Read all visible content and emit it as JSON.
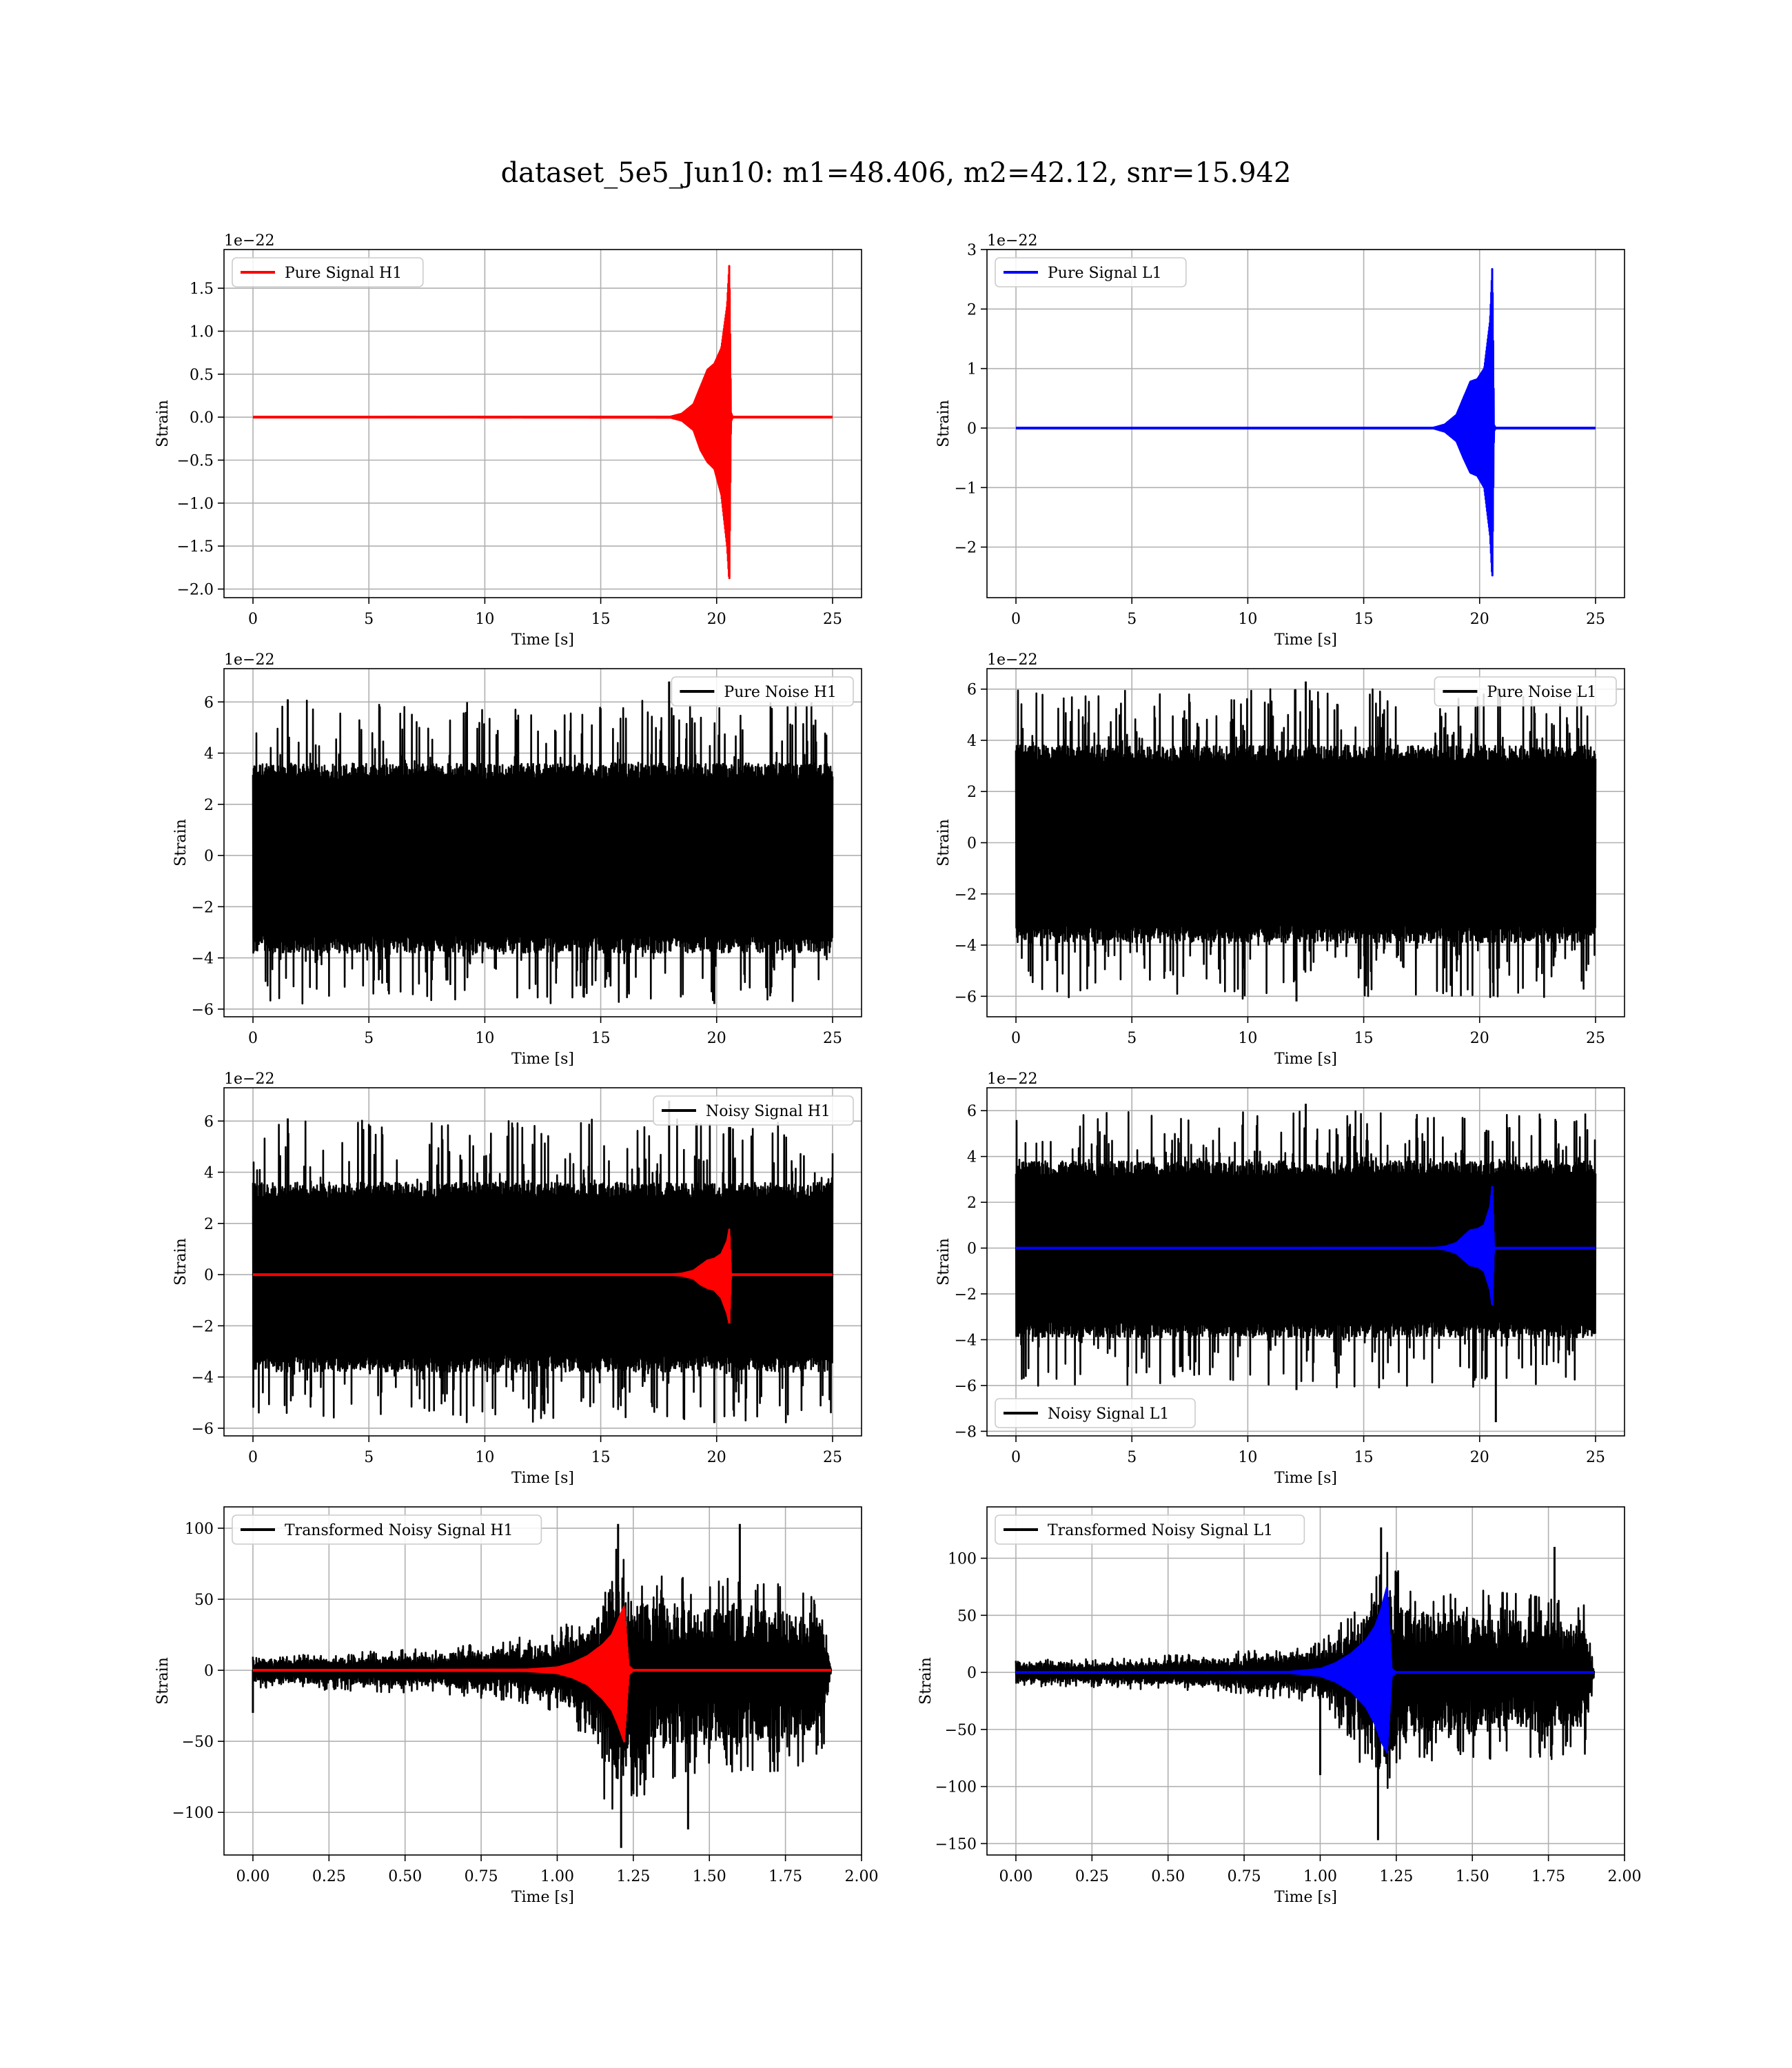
{
  "title": "dataset_5e5_Jun10: m1=48.406, m2=42.12, snr=15.942",
  "colors": {
    "H1": "#ff0000",
    "L1": "#0000ff",
    "noise": "#000000",
    "grid": "#b0b0b0"
  },
  "chart_data": [
    {
      "type": "line",
      "id": "pure-signal-h1",
      "offset_label": "1e−22",
      "xlabel": "Time [s]",
      "ylabel": "Strain",
      "xlim": [
        -1.25,
        26.25
      ],
      "ylim": [
        -2.1,
        1.95
      ],
      "xticks": [
        0,
        5,
        10,
        15,
        20,
        25
      ],
      "xtick_labels": [
        "0",
        "5",
        "10",
        "15",
        "20",
        "25"
      ],
      "yticks": [
        -2.0,
        -1.5,
        -1.0,
        -0.5,
        0.0,
        0.5,
        1.0,
        1.5
      ],
      "ytick_labels": [
        "−2.0",
        "−1.5",
        "−1.0",
        "−0.5",
        "0.0",
        "0.5",
        "1.0",
        "1.5"
      ],
      "legend": {
        "position": "upper-left",
        "entries": [
          {
            "name": "Pure Signal H1",
            "color": "#ff0000"
          }
        ]
      },
      "series": [
        {
          "name": "Pure Signal H1",
          "kind": "chirp",
          "color": "#ff0000",
          "x": [
            0,
            18.0,
            18.5,
            19.0,
            19.3,
            19.6,
            19.9,
            20.2,
            20.45,
            20.55,
            20.62,
            20.7,
            25
          ],
          "upper": [
            0,
            0.005,
            0.04,
            0.15,
            0.35,
            0.55,
            0.62,
            0.8,
            1.3,
            1.8,
            0.05,
            0,
            0
          ],
          "lower": [
            0,
            -0.005,
            -0.04,
            -0.15,
            -0.38,
            -0.52,
            -0.6,
            -0.9,
            -1.5,
            -1.93,
            -0.05,
            0,
            0
          ]
        }
      ]
    },
    {
      "type": "line",
      "id": "pure-signal-l1",
      "offset_label": "1e−22",
      "xlabel": "Time [s]",
      "ylabel": "Strain",
      "xlim": [
        -1.25,
        26.25
      ],
      "ylim": [
        -2.85,
        3.0
      ],
      "xticks": [
        0,
        5,
        10,
        15,
        20,
        25
      ],
      "xtick_labels": [
        "0",
        "5",
        "10",
        "15",
        "20",
        "25"
      ],
      "yticks": [
        -2,
        -1,
        0,
        1,
        2,
        3
      ],
      "ytick_labels": [
        "−2",
        "−1",
        "0",
        "1",
        "2",
        "3"
      ],
      "legend": {
        "position": "upper-left",
        "entries": [
          {
            "name": "Pure Signal L1",
            "color": "#0000ff"
          }
        ]
      },
      "series": [
        {
          "name": "Pure Signal L1",
          "kind": "chirp",
          "color": "#0000ff",
          "x": [
            0,
            18.0,
            18.5,
            19.0,
            19.3,
            19.6,
            19.9,
            20.2,
            20.45,
            20.55,
            20.62,
            20.7,
            25
          ],
          "upper": [
            0,
            0.005,
            0.06,
            0.22,
            0.5,
            0.78,
            0.82,
            1.0,
            1.8,
            2.75,
            0.05,
            0,
            0
          ],
          "lower": [
            0,
            -0.005,
            -0.06,
            -0.22,
            -0.5,
            -0.75,
            -0.8,
            -1.0,
            -1.8,
            -2.55,
            -0.05,
            0,
            0
          ]
        }
      ]
    },
    {
      "type": "line",
      "id": "pure-noise-h1",
      "offset_label": "1e−22",
      "xlabel": "Time [s]",
      "ylabel": "Strain",
      "xlim": [
        -1.25,
        26.25
      ],
      "ylim": [
        -6.3,
        7.3
      ],
      "xticks": [
        0,
        5,
        10,
        15,
        20,
        25
      ],
      "xtick_labels": [
        "0",
        "5",
        "10",
        "15",
        "20",
        "25"
      ],
      "yticks": [
        -6,
        -4,
        -2,
        0,
        2,
        4,
        6
      ],
      "ytick_labels": [
        "−6",
        "−4",
        "−2",
        "0",
        "2",
        "4",
        "6"
      ],
      "legend": {
        "position": "upper-right",
        "entries": [
          {
            "name": "Pure Noise H1",
            "color": "#000000"
          }
        ]
      },
      "series": [
        {
          "name": "Pure Noise H1",
          "kind": "noise",
          "color": "#000000",
          "x": [
            0,
            25
          ],
          "core_upper": 3.6,
          "core_lower": -3.8,
          "spike_upper": 6.1,
          "spike_lower": -5.8,
          "peaks": [
            {
              "x": 1.5,
              "y": 6.1
            },
            {
              "x": 17.95,
              "y": 6.8
            },
            {
              "x": 19.9,
              "y": -5.8
            }
          ]
        }
      ]
    },
    {
      "type": "line",
      "id": "pure-noise-l1",
      "offset_label": "1e−22",
      "xlabel": "Time [s]",
      "ylabel": "Strain",
      "xlim": [
        -1.25,
        26.25
      ],
      "ylim": [
        -6.8,
        6.8
      ],
      "xticks": [
        0,
        5,
        10,
        15,
        20,
        25
      ],
      "xtick_labels": [
        "0",
        "5",
        "10",
        "15",
        "20",
        "25"
      ],
      "yticks": [
        -6,
        -4,
        -2,
        0,
        2,
        4,
        6
      ],
      "ytick_labels": [
        "−6",
        "−4",
        "−2",
        "0",
        "2",
        "4",
        "6"
      ],
      "legend": {
        "position": "upper-right",
        "entries": [
          {
            "name": "Pure Noise L1",
            "color": "#000000"
          }
        ]
      },
      "series": [
        {
          "name": "Pure Noise L1",
          "kind": "noise",
          "color": "#000000",
          "x": [
            0,
            25
          ],
          "core_upper": 3.8,
          "core_lower": -3.9,
          "spike_upper": 6.0,
          "spike_lower": -6.1,
          "peaks": [
            {
              "x": 12.5,
              "y": 6.3
            },
            {
              "x": 12.1,
              "y": -6.2
            },
            {
              "x": 20.6,
              "y": -6.0
            }
          ]
        }
      ]
    },
    {
      "type": "line",
      "id": "noisy-signal-h1",
      "offset_label": "1e−22",
      "xlabel": "Time [s]",
      "ylabel": "Strain",
      "xlim": [
        -1.25,
        26.25
      ],
      "ylim": [
        -6.3,
        7.3
      ],
      "xticks": [
        0,
        5,
        10,
        15,
        20,
        25
      ],
      "xtick_labels": [
        "0",
        "5",
        "10",
        "15",
        "20",
        "25"
      ],
      "yticks": [
        -6,
        -4,
        -2,
        0,
        2,
        4,
        6
      ],
      "ytick_labels": [
        "−6",
        "−4",
        "−2",
        "0",
        "2",
        "4",
        "6"
      ],
      "legend": {
        "position": "upper-right",
        "entries": [
          {
            "name": "Noisy Signal H1",
            "color": "#000000"
          }
        ]
      },
      "series": [
        {
          "name": "Noisy Signal H1",
          "kind": "noise",
          "color": "#000000",
          "x": [
            0,
            25
          ],
          "core_upper": 3.6,
          "core_lower": -3.8,
          "spike_upper": 6.1,
          "spike_lower": -5.8,
          "peaks": [
            {
              "x": 1.5,
              "y": 6.1
            },
            {
              "x": 17.95,
              "y": 6.8
            },
            {
              "x": 19.9,
              "y": -5.8
            }
          ]
        },
        {
          "name": "signal-overlay",
          "kind": "chirp",
          "color": "#ff0000",
          "x": [
            0,
            18.0,
            18.5,
            19.0,
            19.3,
            19.6,
            19.9,
            20.2,
            20.45,
            20.55,
            20.62,
            20.7,
            25
          ],
          "upper": [
            0,
            0.005,
            0.04,
            0.15,
            0.35,
            0.55,
            0.62,
            0.8,
            1.3,
            1.8,
            0.05,
            0,
            0
          ],
          "lower": [
            0,
            -0.005,
            -0.04,
            -0.15,
            -0.38,
            -0.52,
            -0.6,
            -0.9,
            -1.5,
            -1.93,
            -0.05,
            0,
            0
          ]
        }
      ]
    },
    {
      "type": "line",
      "id": "noisy-signal-l1",
      "offset_label": "1e−22",
      "xlabel": "Time [s]",
      "ylabel": "Strain",
      "xlim": [
        -1.25,
        26.25
      ],
      "ylim": [
        -8.2,
        7.0
      ],
      "xticks": [
        0,
        5,
        10,
        15,
        20,
        25
      ],
      "xtick_labels": [
        "0",
        "5",
        "10",
        "15",
        "20",
        "25"
      ],
      "yticks": [
        -8,
        -6,
        -4,
        -2,
        0,
        2,
        4,
        6
      ],
      "ytick_labels": [
        "−8",
        "−6",
        "−4",
        "−2",
        "0",
        "2",
        "4",
        "6"
      ],
      "legend": {
        "position": "lower-left",
        "entries": [
          {
            "name": "Noisy Signal L1",
            "color": "#000000"
          }
        ]
      },
      "series": [
        {
          "name": "Noisy Signal L1",
          "kind": "noise",
          "color": "#000000",
          "x": [
            0,
            25
          ],
          "core_upper": 3.8,
          "core_lower": -3.9,
          "spike_upper": 6.0,
          "spike_lower": -6.1,
          "peaks": [
            {
              "x": 12.5,
              "y": 6.3
            },
            {
              "x": 20.7,
              "y": -7.6
            },
            {
              "x": 12.1,
              "y": -6.2
            }
          ]
        },
        {
          "name": "signal-overlay",
          "kind": "chirp",
          "color": "#0000ff",
          "x": [
            0,
            18.0,
            18.5,
            19.0,
            19.3,
            19.6,
            19.9,
            20.2,
            20.45,
            20.55,
            20.62,
            20.7,
            25
          ],
          "upper": [
            0,
            0.005,
            0.06,
            0.22,
            0.5,
            0.78,
            0.82,
            1.0,
            1.8,
            2.75,
            0.05,
            0,
            0
          ],
          "lower": [
            0,
            -0.005,
            -0.06,
            -0.22,
            -0.5,
            -0.75,
            -0.8,
            -1.0,
            -1.8,
            -2.55,
            -0.05,
            0,
            0
          ]
        }
      ]
    },
    {
      "type": "line",
      "id": "transformed-noisy-signal-h1",
      "offset_label": "",
      "xlabel": "Time [s]",
      "ylabel": "Strain",
      "xlim": [
        -0.095,
        2.0
      ],
      "ylim": [
        -130,
        115
      ],
      "xticks": [
        0,
        0.25,
        0.5,
        0.75,
        1.0,
        1.25,
        1.5,
        1.75,
        2.0
      ],
      "xtick_labels": [
        "0.00",
        "0.25",
        "0.50",
        "0.75",
        "1.00",
        "1.25",
        "1.50",
        "1.75",
        "2.00"
      ],
      "yticks": [
        -100,
        -50,
        0,
        50,
        100
      ],
      "ytick_labels": [
        "−100",
        "−50",
        "0",
        "50",
        "100"
      ],
      "legend": {
        "position": "upper-left",
        "entries": [
          {
            "name": "Transformed Noisy Signal H1",
            "color": "#000000"
          }
        ]
      },
      "series": [
        {
          "name": "Transformed Noisy Signal H1",
          "kind": "envelope-noise",
          "color": "#000000",
          "x": [
            0,
            0.3,
            0.6,
            0.9,
            1.0,
            1.1,
            1.15,
            1.2,
            1.25,
            1.4,
            1.6,
            1.75,
            1.87,
            1.9
          ],
          "upper": [
            8,
            10,
            14,
            20,
            24,
            35,
            55,
            90,
            60,
            55,
            55,
            50,
            45,
            2
          ],
          "lower": [
            -10,
            -12,
            -14,
            -20,
            -25,
            -45,
            -75,
            -110,
            -80,
            -65,
            -60,
            -60,
            -55,
            -2
          ],
          "peaks": [
            {
              "x": 0.0,
              "y": -30
            },
            {
              "x": 1.21,
              "y": -125
            },
            {
              "x": 1.2,
              "y": 103
            },
            {
              "x": 1.43,
              "y": -112
            },
            {
              "x": 1.6,
              "y": 103
            }
          ]
        },
        {
          "name": "signal-overlay",
          "kind": "chirp",
          "color": "#ff0000",
          "x": [
            0,
            0.9,
            1.0,
            1.05,
            1.1,
            1.15,
            1.18,
            1.2,
            1.22,
            1.235,
            1.25,
            1.9
          ],
          "upper": [
            0,
            0.5,
            2,
            5,
            10,
            18,
            25,
            35,
            45,
            3,
            0,
            0
          ],
          "lower": [
            0,
            -0.5,
            -2,
            -5,
            -10,
            -20,
            -28,
            -38,
            -50,
            -3,
            0,
            0
          ]
        }
      ]
    },
    {
      "type": "line",
      "id": "transformed-noisy-signal-l1",
      "offset_label": "",
      "xlabel": "Time [s]",
      "ylabel": "Strain",
      "xlim": [
        -0.095,
        2.0
      ],
      "ylim": [
        -160,
        145
      ],
      "xticks": [
        0,
        0.25,
        0.5,
        0.75,
        1.0,
        1.25,
        1.5,
        1.75,
        2.0
      ],
      "xtick_labels": [
        "0.00",
        "0.25",
        "0.50",
        "0.75",
        "1.00",
        "1.25",
        "1.50",
        "1.75",
        "2.00"
      ],
      "yticks": [
        -150,
        -100,
        -50,
        0,
        50,
        100
      ],
      "ytick_labels": [
        "−150",
        "−100",
        "−50",
        "0",
        "50",
        "100"
      ],
      "legend": {
        "position": "upper-left",
        "entries": [
          {
            "name": "Transformed Noisy Signal L1",
            "color": "#000000"
          }
        ]
      },
      "series": [
        {
          "name": "Transformed Noisy Signal L1",
          "kind": "envelope-noise",
          "color": "#000000",
          "x": [
            0,
            0.3,
            0.6,
            0.9,
            1.0,
            1.1,
            1.15,
            1.2,
            1.25,
            1.4,
            1.6,
            1.75,
            1.87,
            1.9
          ],
          "upper": [
            10,
            10,
            14,
            18,
            22,
            45,
            60,
            100,
            75,
            60,
            60,
            58,
            50,
            2
          ],
          "lower": [
            -10,
            -12,
            -14,
            -20,
            -25,
            -50,
            -80,
            -120,
            -75,
            -65,
            -65,
            -65,
            -60,
            -2
          ],
          "peaks": [
            {
              "x": 1.19,
              "y": -147
            },
            {
              "x": 1.2,
              "y": 127
            },
            {
              "x": 1.77,
              "y": 110
            },
            {
              "x": 1.0,
              "y": -90
            }
          ]
        },
        {
          "name": "signal-overlay",
          "kind": "chirp",
          "color": "#0000ff",
          "x": [
            0,
            0.9,
            1.0,
            1.05,
            1.1,
            1.15,
            1.18,
            1.2,
            1.22,
            1.235,
            1.25,
            1.9
          ],
          "upper": [
            0,
            0.5,
            3,
            8,
            16,
            28,
            40,
            55,
            75,
            3,
            0,
            0
          ],
          "lower": [
            0,
            -0.5,
            -3,
            -8,
            -16,
            -30,
            -45,
            -60,
            -70,
            -3,
            0,
            0
          ]
        }
      ]
    }
  ]
}
